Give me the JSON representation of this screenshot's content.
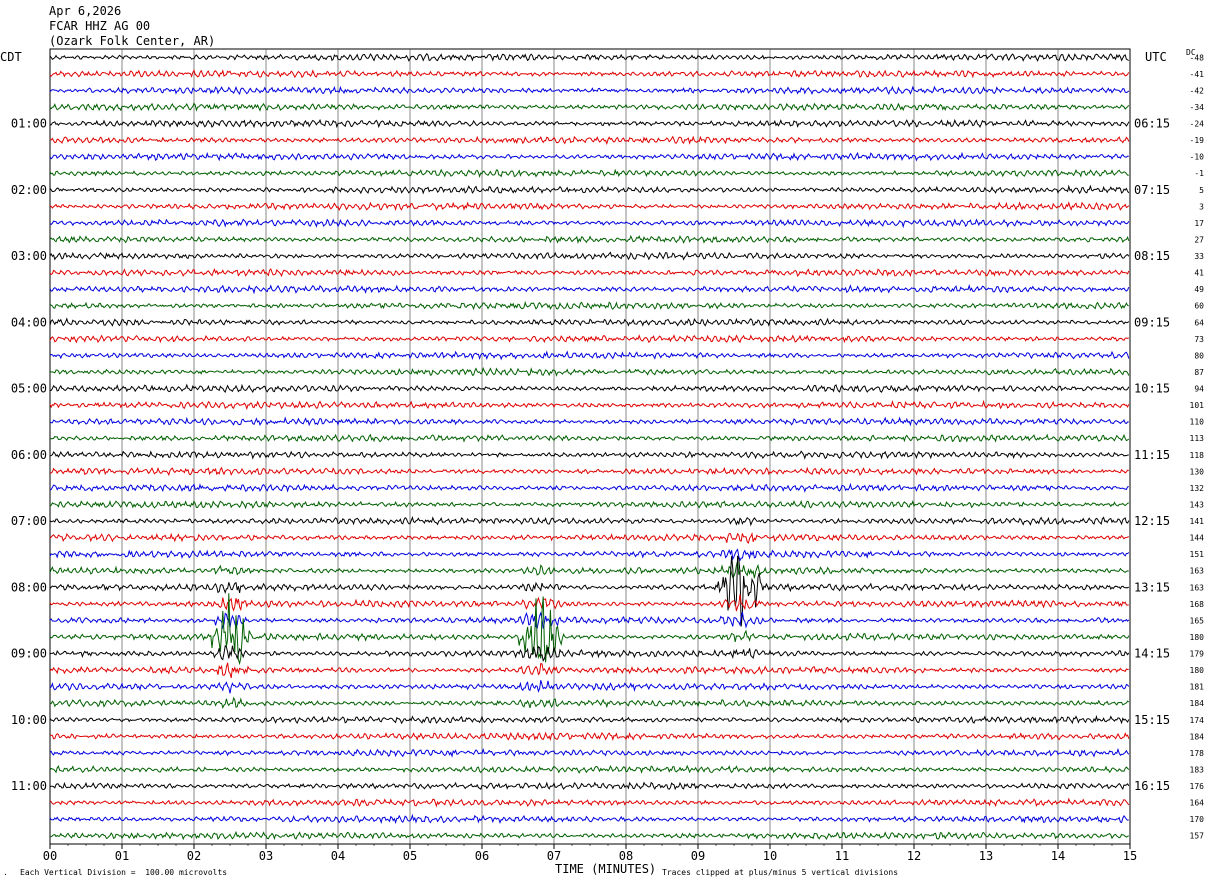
{
  "header": {
    "date": "Apr 6,2026",
    "station": "FCAR HHZ AG 00",
    "location": "(Ozark Folk Center, AR)"
  },
  "left_axis_title": "CDT",
  "right_axis_title": "UTC",
  "dc_title": "DC",
  "footer": {
    "scale_note": "Each Vertical Division =  100.00 microvolts",
    "clip_note": "Traces clipped at plus/minus 5 vertical divisions",
    "small_mark": "."
  },
  "colors": {
    "trace_cycle": [
      "#000000",
      "#e00000",
      "#0000e0",
      "#006000"
    ],
    "grid": "#000000"
  },
  "chart_data": {
    "type": "line",
    "title": "",
    "xlabel": "TIME (MINUTES)",
    "xlim": [
      0,
      15
    ],
    "x_ticks": [
      "00",
      "01",
      "02",
      "03",
      "04",
      "05",
      "06",
      "07",
      "08",
      "09",
      "10",
      "11",
      "12",
      "13",
      "14",
      "15"
    ],
    "rows": 48,
    "left_hour_labels": [
      "01:00",
      "02:00",
      "03:00",
      "04:00",
      "05:00",
      "06:00",
      "07:00",
      "08:00",
      "09:00",
      "10:00",
      "11:00"
    ],
    "right_hour_labels": [
      "06:15",
      "07:15",
      "08:15",
      "09:15",
      "10:15",
      "11:15",
      "12:15",
      "13:15",
      "14:15",
      "15:15",
      "16:15"
    ],
    "hour_label_rows": [
      4,
      8,
      12,
      16,
      20,
      24,
      28,
      32,
      36,
      40,
      44
    ],
    "dc_offsets": [
      "-48",
      "-41",
      "-42",
      "-34",
      "-24",
      "-19",
      "-10",
      "-1",
      "5",
      "3",
      "17",
      "27",
      "33",
      "41",
      "49",
      "60",
      "64",
      "73",
      "80",
      "87",
      "94",
      "101",
      "110",
      "113",
      "118",
      "130",
      "132",
      "143",
      "141",
      "144",
      "151",
      "163",
      "163",
      "168",
      "165",
      "180",
      "179",
      "180",
      "181",
      "184",
      "174",
      "184",
      "178",
      "183",
      "176",
      "164",
      "170",
      "157"
    ],
    "events": [
      {
        "row": 35,
        "start_minute": 2.2,
        "end_minute": 2.8,
        "peak_minute": 2.5,
        "amplitude": 5
      },
      {
        "row": 35,
        "start_minute": 6.5,
        "end_minute": 7.2,
        "peak_minute": 6.8,
        "amplitude": 5
      },
      {
        "row": 32,
        "start_minute": 9.2,
        "end_minute": 9.9,
        "peak_minute": 9.6,
        "amplitude": 5
      }
    ]
  }
}
